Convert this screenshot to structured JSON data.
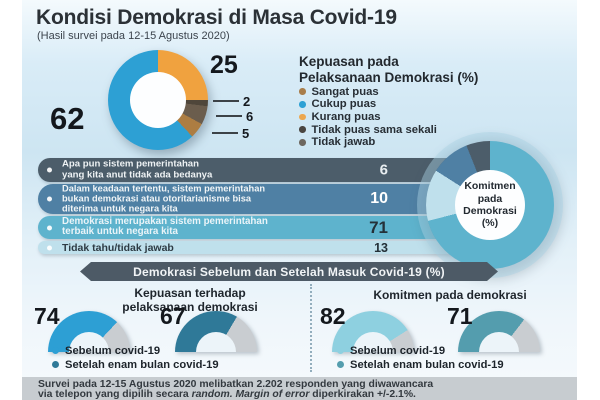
{
  "header": {
    "title": "Kondisi Demokrasi di Masa Covid-19",
    "subtitle": "(Hasil survei pada 12-15 Agustus 2020)"
  },
  "colors": {
    "gauge_track": "#c9cdd1",
    "panel_top": "#f4fafd",
    "panel_mid": "#cde5f2",
    "ribbon": "#4d5a66",
    "footer_bg": "#c7ccd0"
  },
  "satisfaction": {
    "legend_title": "Kepuasan pada\nPelaksanaan Demokrasi (%)",
    "segments": [
      {
        "label": "Kurang puas",
        "value": 25,
        "color": "#f0a23f"
      },
      {
        "label": "Tidak jawab",
        "value": 2,
        "color": "#4f463a"
      },
      {
        "label": "Tidak puas sama sekali",
        "value": 6,
        "color": "#6b5d4d"
      },
      {
        "label": "Sangat puas",
        "value": 5,
        "color": "#ad7d42"
      },
      {
        "label": "Cukup puas",
        "value": 62,
        "color": "#2da0d4"
      }
    ],
    "legend": [
      {
        "label": "Sangat puas",
        "color": "#a87d4a"
      },
      {
        "label": "Cukup puas",
        "color": "#2da0d4"
      },
      {
        "label": "Kurang puas",
        "color": "#eca74f"
      },
      {
        "label": "Tidak puas sama sekali",
        "color": "#4a4540"
      },
      {
        "label": "Tidak jawab",
        "color": "#6d675f"
      }
    ]
  },
  "commitment": {
    "center_label": "Komitmen\npada\nDemokrasi\n(%)",
    "bars": [
      {
        "text": "Apa pun sistem pemerintahan\nyang kita anut tidak ada bedanya",
        "value": 6,
        "color": "#4c5d6a",
        "text_color": "#eef2f4",
        "value_color": "#e8edf0"
      },
      {
        "text": "Dalam keadaan tertentu, sistem pemerintahan\nbukan demokrasi atau otoritarianisme bisa\nditerima untuk negara kita",
        "value": 10,
        "color": "#4f80a4",
        "text_color": "#f0f4f6",
        "value_color": "#ffffff"
      },
      {
        "text": "Demokrasi merupakan sistem pemerintahan\nterbaik untuk negara kita",
        "value": 71,
        "color": "#5eb3cd",
        "text_color": "#eaf4f8",
        "value_color": "#243038"
      },
      {
        "text": "Tidak tahu/tidak jawab",
        "value": 13,
        "color": "#bfe0ec",
        "text_color": "#2e3b44",
        "value_color": "#243038"
      }
    ],
    "donut_draw": [
      {
        "label": "Demokrasi merupakan sistem pemerintahan terbaik untuk negara kita",
        "value": 71,
        "color": "#5eb3cd"
      },
      {
        "label": "Tidak tahu/tidak jawab",
        "value": 13,
        "color": "#bfe0ec"
      },
      {
        "label": "Dalam keadaan tertentu, sistem pemerintahan bukan demokrasi atau otoritarianisme bisa diterima untuk negara kita",
        "value": 10,
        "color": "#4f80a4"
      },
      {
        "label": "Apa pun sistem pemerintahan yang kita anut tidak ada bedanya",
        "value": 6,
        "color": "#4c5d6a"
      }
    ]
  },
  "ribbon_label": "Demokrasi Sebelum dan Setelah Masuk Covid-19 (%)",
  "before_after": {
    "left": {
      "title": "Kepuasan terhadap\npelaksanaan demokrasi",
      "gauges": [
        {
          "label": "Sebelum covid-19",
          "value": 74,
          "color": "#2d9fd4"
        },
        {
          "label": "Setelah enam bulan covid-19",
          "value": 67,
          "color": "#2f7998"
        }
      ]
    },
    "right": {
      "title": "Komitmen pada demokrasi",
      "gauges": [
        {
          "label": "Sebelum covid-19",
          "value": 82,
          "color": "#8ed0e0"
        },
        {
          "label": "Setelah enam bulan covid-19",
          "value": 71,
          "color": "#549dae"
        }
      ]
    }
  },
  "footer": {
    "line1": "Survei pada 12-15 Agustus 2020 melibatkan 2.202 responden yang diwawancara",
    "line2_normal1": "via telepon yang dipilih secara ",
    "line2_italic": "random. Margin of error",
    "line2_normal2": " diperkirakan +/-2.1%."
  },
  "chart_data": [
    {
      "type": "pie",
      "title": "Kepuasan pada Pelaksanaan Demokrasi (%)",
      "labels": [
        "Sangat puas",
        "Cukup puas",
        "Kurang puas",
        "Tidak puas sama sekali",
        "Tidak jawab"
      ],
      "values": [
        5,
        62,
        25,
        6,
        2
      ],
      "legend_position": "right"
    },
    {
      "type": "bar",
      "title": "Komitmen pada Demokrasi (%)",
      "categories": [
        "Apa pun sistem pemerintahan yang kita anut tidak ada bedanya",
        "Dalam keadaan tertentu, sistem pemerintahan bukan demokrasi atau otoritarianisme bisa diterima untuk negara kita",
        "Demokrasi merupakan sistem pemerintahan terbaik untuk negara kita",
        "Tidak tahu/tidak jawab"
      ],
      "values": [
        6,
        10,
        71,
        13
      ]
    },
    {
      "type": "pie",
      "title": "Kepuasan terhadap pelaksanaan demokrasi (%)",
      "labels": [
        "Sebelum covid-19",
        "Setelah enam bulan covid-19"
      ],
      "values": [
        74,
        67
      ]
    },
    {
      "type": "pie",
      "title": "Komitmen pada demokrasi (%)",
      "labels": [
        "Sebelum covid-19",
        "Setelah enam bulan covid-19"
      ],
      "values": [
        82,
        71
      ]
    }
  ]
}
